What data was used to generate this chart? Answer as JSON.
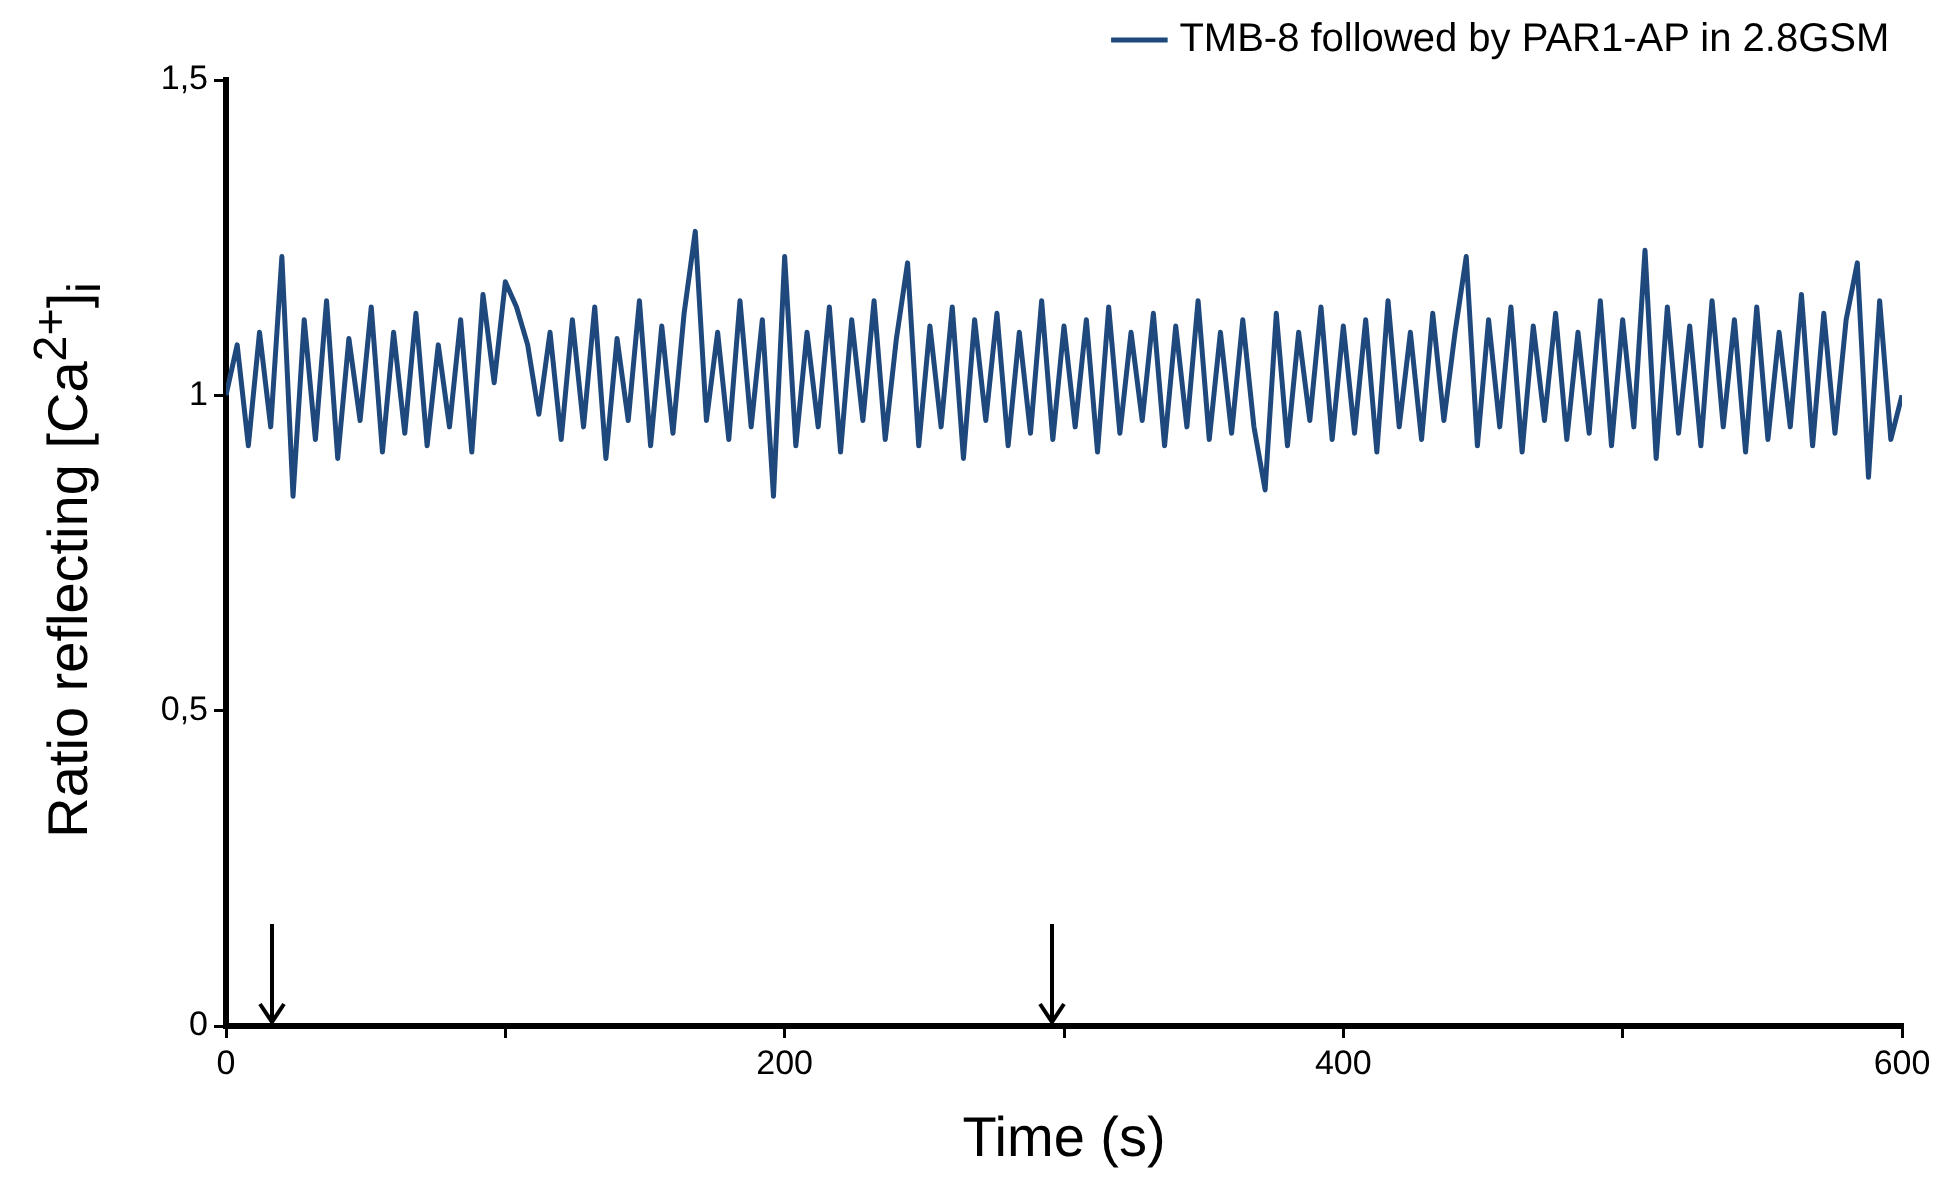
{
  "chart_data": {
    "type": "line",
    "xlabel": "Time (s)",
    "ylabel": "Ratio reflecting [Ca$^{2+}$]$_{i}$",
    "x": [
      0,
      4,
      8,
      12,
      16,
      20,
      24,
      28,
      32,
      36,
      40,
      44,
      48,
      52,
      56,
      60,
      64,
      68,
      72,
      76,
      80,
      84,
      88,
      92,
      96,
      100,
      104,
      108,
      112,
      116,
      120,
      124,
      128,
      132,
      136,
      140,
      144,
      148,
      152,
      156,
      160,
      164,
      168,
      172,
      176,
      180,
      184,
      188,
      192,
      196,
      200,
      204,
      208,
      212,
      216,
      220,
      224,
      228,
      232,
      236,
      240,
      244,
      248,
      252,
      256,
      260,
      264,
      268,
      272,
      276,
      280,
      284,
      288,
      292,
      296,
      300,
      304,
      308,
      312,
      316,
      320,
      324,
      328,
      332,
      336,
      340,
      344,
      348,
      352,
      356,
      360,
      364,
      368,
      372,
      376,
      380,
      384,
      388,
      392,
      396,
      400,
      404,
      408,
      412,
      416,
      420,
      424,
      428,
      432,
      436,
      440,
      444,
      448,
      452,
      456,
      460,
      464,
      468,
      472,
      476,
      480,
      484,
      488,
      492,
      496,
      500,
      504,
      508,
      512,
      516,
      520,
      524,
      528,
      532,
      536,
      540,
      544,
      548,
      552,
      556,
      560,
      564,
      568,
      572,
      576,
      580,
      584,
      588,
      592,
      596,
      600
    ],
    "series": [
      {
        "name": "TMB-8 followed by PAR1-AP in 2.8GSM",
        "color": "#1f497d",
        "values": [
          1.0,
          1.08,
          0.92,
          1.1,
          0.95,
          1.22,
          0.84,
          1.12,
          0.93,
          1.15,
          0.9,
          1.09,
          0.96,
          1.14,
          0.91,
          1.1,
          0.94,
          1.13,
          0.92,
          1.08,
          0.95,
          1.12,
          0.91,
          1.16,
          1.02,
          1.18,
          1.14,
          1.08,
          0.97,
          1.1,
          0.93,
          1.12,
          0.95,
          1.14,
          0.9,
          1.09,
          0.96,
          1.15,
          0.92,
          1.11,
          0.94,
          1.13,
          1.26,
          0.96,
          1.1,
          0.93,
          1.15,
          0.95,
          1.12,
          0.84,
          1.22,
          0.92,
          1.1,
          0.95,
          1.14,
          0.91,
          1.12,
          0.96,
          1.15,
          0.93,
          1.09,
          1.21,
          0.92,
          1.11,
          0.95,
          1.14,
          0.9,
          1.12,
          0.96,
          1.13,
          0.92,
          1.1,
          0.94,
          1.15,
          0.93,
          1.11,
          0.95,
          1.12,
          0.91,
          1.14,
          0.94,
          1.1,
          0.96,
          1.13,
          0.92,
          1.11,
          0.95,
          1.15,
          0.93,
          1.1,
          0.94,
          1.12,
          0.95,
          0.85,
          1.13,
          0.92,
          1.1,
          0.96,
          1.14,
          0.93,
          1.11,
          0.94,
          1.12,
          0.91,
          1.15,
          0.95,
          1.1,
          0.93,
          1.13,
          0.96,
          1.1,
          1.22,
          0.92,
          1.12,
          0.95,
          1.14,
          0.91,
          1.11,
          0.96,
          1.13,
          0.93,
          1.1,
          0.94,
          1.15,
          0.92,
          1.12,
          0.95,
          1.23,
          0.9,
          1.14,
          0.94,
          1.11,
          0.92,
          1.15,
          0.95,
          1.12,
          0.91,
          1.14,
          0.93,
          1.1,
          0.95,
          1.16,
          0.92,
          1.13,
          0.94,
          1.12,
          1.21,
          0.87,
          1.15,
          0.93,
          1.0
        ]
      }
    ],
    "xlim": [
      0,
      600
    ],
    "xticks": [
      0,
      {
        "value": 100,
        "label": null
      },
      200,
      {
        "value": 300,
        "label": null
      },
      400,
      {
        "value": 500,
        "label": null
      },
      600
    ],
    "ylim": [
      0,
      1.5
    ],
    "yticks": [
      0,
      {
        "value": 0.5,
        "label": "0,5"
      },
      1,
      {
        "value": 1.5,
        "label": "1,5"
      }
    ],
    "grid": false,
    "legend": "top right",
    "marker": "none",
    "line_style": "solid"
  }
}
